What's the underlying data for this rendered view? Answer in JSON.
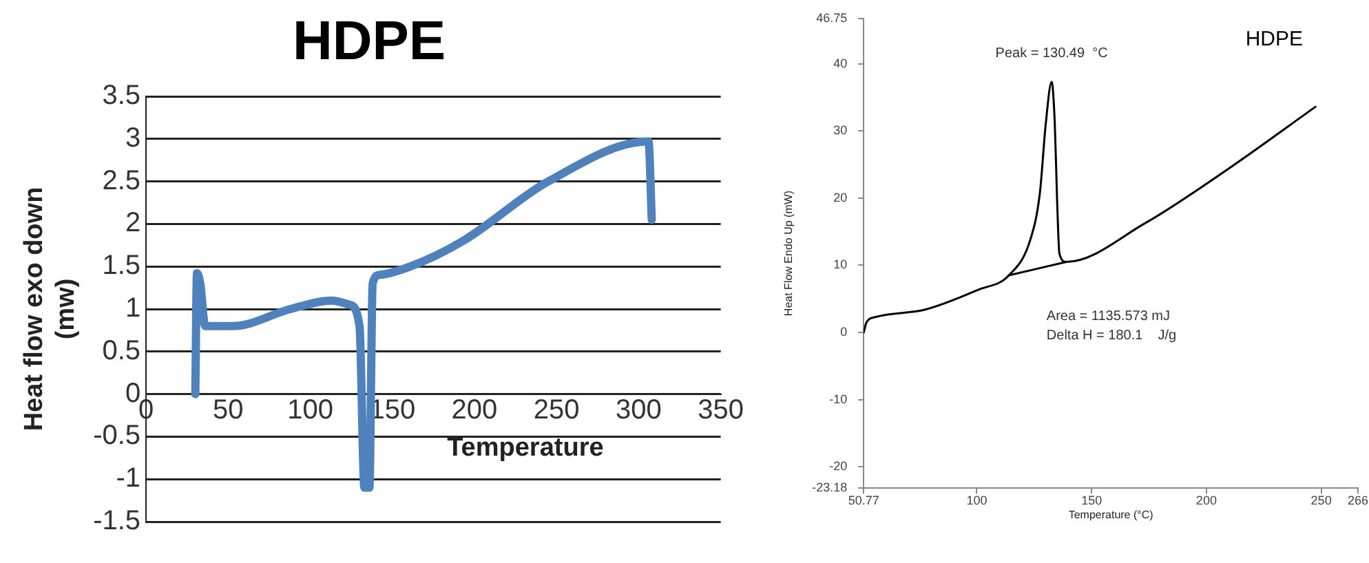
{
  "chart_data": [
    {
      "type": "line",
      "title": "HDPE",
      "xlabel": "Temperature",
      "ylabel": "Heat flow exo down (mw)",
      "series": [
        {
          "color": "#4f81bd",
          "x": [
            30,
            31,
            33,
            36,
            53,
            88,
            113,
            124,
            130,
            133,
            136,
            138,
            142,
            161,
            193,
            245,
            306,
            308
          ],
          "values": [
            0,
            1.42,
            1.3,
            0.8,
            0.8,
            1.0,
            1.1,
            1.05,
            0.8,
            -1.1,
            -1.1,
            1.3,
            1.4,
            1.5,
            1.8,
            2.5,
            2.97,
            2.05
          ]
        }
      ],
      "xlim": [
        0,
        350
      ],
      "xticks": [
        0,
        50,
        100,
        150,
        200,
        250,
        300,
        350
      ],
      "ylim": [
        -1.5,
        3.5
      ],
      "yticks": [
        -1.5,
        -1,
        -0.5,
        0,
        0.5,
        1,
        1.5,
        2,
        2.5,
        3,
        3.5
      ],
      "grid": "y",
      "legend": false,
      "marker": "none",
      "line_style": "solid"
    },
    {
      "type": "line",
      "title": "HDPE",
      "xlabel": "Temperature (°C)",
      "ylabel": "Heat Flow Endo Up (mW)",
      "series": [
        {
          "color": "#000000",
          "x": [
            50.77,
            52,
            56,
            77.6,
            101,
            114,
            123.5,
            127.5,
            130,
            132.6,
            134,
            135,
            136,
            139,
            173,
            211,
            247.5
          ],
          "values": [
            0,
            1.5,
            2.3,
            3.4,
            6.4,
            8.5,
            14,
            20.8,
            30.9,
            37.3,
            30.9,
            19.5,
            11.7,
            10.5,
            16.2,
            24.7,
            33.6
          ]
        },
        {
          "color": "#000000",
          "x": [
            114,
            139
          ],
          "values": [
            8.5,
            10.5
          ]
        }
      ],
      "annotations": [
        {
          "text": "Peak = 130.49  °C",
          "x": 132.6,
          "y": 37.3
        },
        "Area = 1135.573 mJ",
        "Delta H = 180.1    J/g"
      ],
      "xlim": [
        50.77,
        266
      ],
      "xticks": [
        50.77,
        100,
        150,
        200,
        250,
        266
      ],
      "ylim": [
        -23.18,
        46.75
      ],
      "yticks": [
        -23.18,
        -20,
        -10,
        0,
        10,
        20,
        30,
        40,
        46.75
      ],
      "grid": false,
      "legend": false,
      "marker": "none",
      "line_style": "solid"
    }
  ]
}
